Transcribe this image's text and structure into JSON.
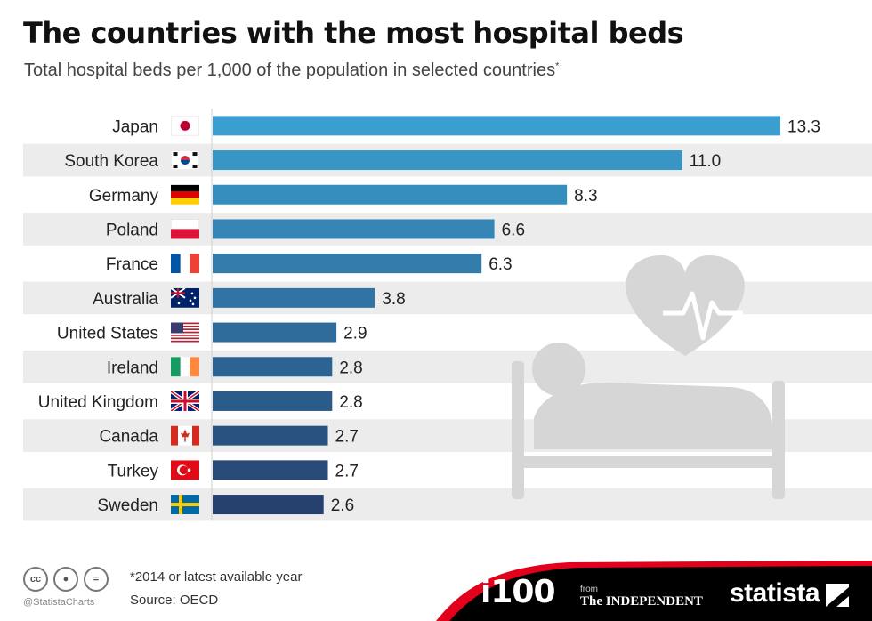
{
  "header": {
    "title": "The countries with the most hospital beds",
    "subtitle": "Total hospital beds per 1,000 of the population in selected countries",
    "subtitle_mark": "*"
  },
  "chart_data": {
    "type": "bar",
    "orientation": "horizontal",
    "title": "The countries with the most hospital beds",
    "subtitle": "Total hospital beds per 1,000 of the population in selected countries*",
    "categories": [
      "Japan",
      "South Korea",
      "Germany",
      "Poland",
      "France",
      "Australia",
      "United States",
      "Ireland",
      "United Kingdom",
      "Canada",
      "Turkey",
      "Sweden"
    ],
    "values": [
      13.3,
      11.0,
      8.3,
      6.6,
      6.3,
      3.8,
      2.9,
      2.8,
      2.8,
      2.7,
      2.7,
      2.6
    ],
    "value_labels": [
      "13.3",
      "11.0",
      "8.3",
      "6.6",
      "6.3",
      "3.8",
      "2.9",
      "2.8",
      "2.8",
      "2.7",
      "2.7",
      "2.6"
    ],
    "xlim": [
      0,
      13.3
    ],
    "grid": false,
    "legend": "none",
    "colors": {
      "bar_top": "#3a9fd0",
      "bar_bottom": "#26416e",
      "band": "#ececec",
      "illustration": "#d6d6d6"
    }
  },
  "footer": {
    "note": "*2014 or latest available year",
    "source": "Source: OECD",
    "handle": "@StatistaCharts",
    "license_icons": [
      "cc-icon",
      "person-icon",
      "equals-icon"
    ],
    "logos": {
      "i100": "i100",
      "from": "from",
      "independent": "The INDEPENDENT",
      "statista": "statista"
    },
    "banner_color": "#000000",
    "accent_color": "#e2001a"
  }
}
